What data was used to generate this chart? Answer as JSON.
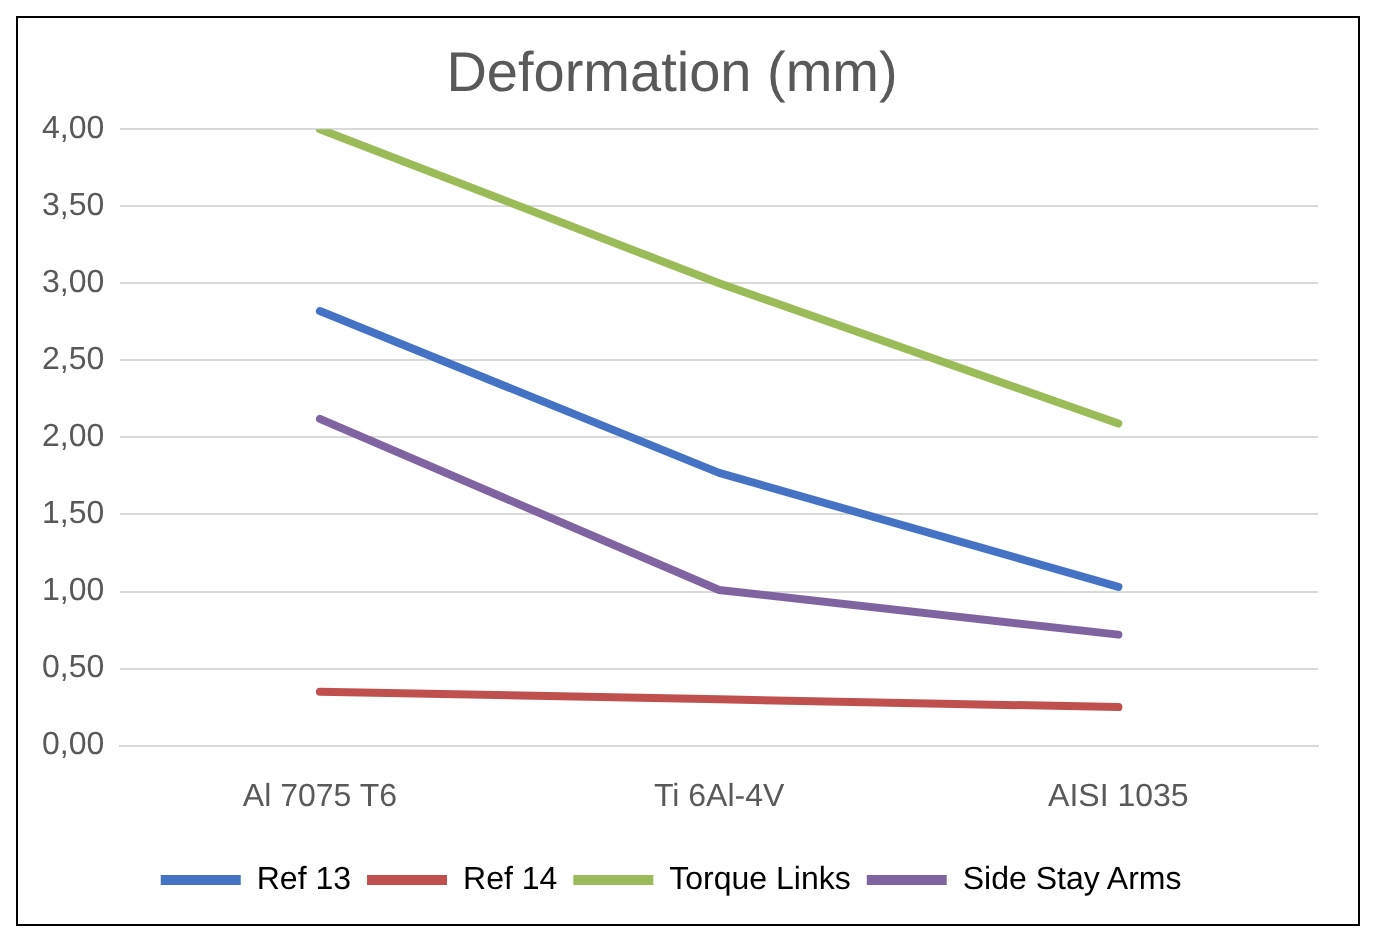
{
  "chart_data": {
    "type": "line",
    "title": "Deformation (mm)",
    "categories": [
      "Al 7075 T6",
      "Ti 6Al-4V",
      "AISI 1035"
    ],
    "series": [
      {
        "name": "Ref 13",
        "color": "#4472c4",
        "values": [
          2.82,
          1.77,
          1.03
        ]
      },
      {
        "name": "Ref 14",
        "color": "#c0504d",
        "values": [
          0.35,
          0.3,
          0.25
        ]
      },
      {
        "name": "Torque Links",
        "color": "#9bbb59",
        "values": [
          4.0,
          3.0,
          2.09
        ]
      },
      {
        "name": "Side Stay Arms",
        "color": "#8064a2",
        "values": [
          2.12,
          1.01,
          0.72
        ]
      }
    ],
    "ylim": [
      0,
      4
    ],
    "yticks": [
      {
        "value": 0,
        "label": "0,00"
      },
      {
        "value": 0.5,
        "label": "0,50"
      },
      {
        "value": 1,
        "label": "1,00"
      },
      {
        "value": 1.5,
        "label": "1,50"
      },
      {
        "value": 2,
        "label": "2,00"
      },
      {
        "value": 2.5,
        "label": "2,50"
      },
      {
        "value": 3,
        "label": "3,00"
      },
      {
        "value": 3.5,
        "label": "3,50"
      },
      {
        "value": 4,
        "label": "4,00"
      }
    ],
    "grid": "y",
    "legend": "bottom",
    "marker": "none",
    "line_style": "solid"
  }
}
